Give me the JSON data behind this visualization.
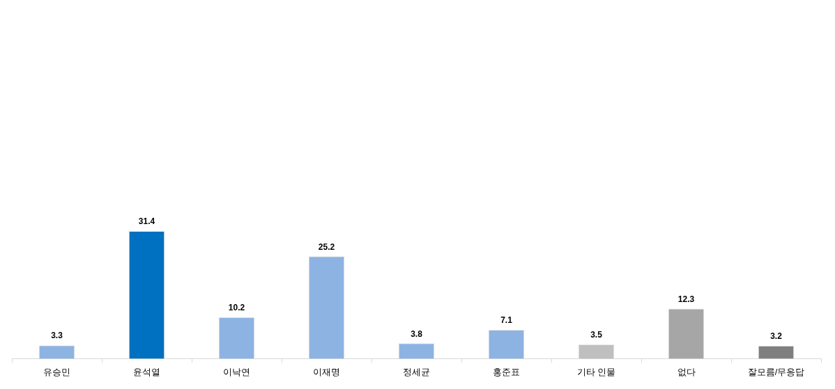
{
  "chart_data": {
    "type": "bar",
    "categories": [
      "유승민",
      "윤석열",
      "이낙연",
      "이재명",
      "정세균",
      "홍준표",
      "기타 인물",
      "없다",
      "잘모름/무응답"
    ],
    "values": [
      3.3,
      31.4,
      10.2,
      25.2,
      3.8,
      7.1,
      3.5,
      12.3,
      3.2
    ],
    "colors": [
      "#8db3e2",
      "#0070c0",
      "#8db3e2",
      "#8db3e2",
      "#8db3e2",
      "#8db3e2",
      "#bfbfbf",
      "#a6a6a6",
      "#7f7f7f"
    ],
    "tick_labels": "x",
    "data_labels": true,
    "grid": false,
    "legend": false
  }
}
